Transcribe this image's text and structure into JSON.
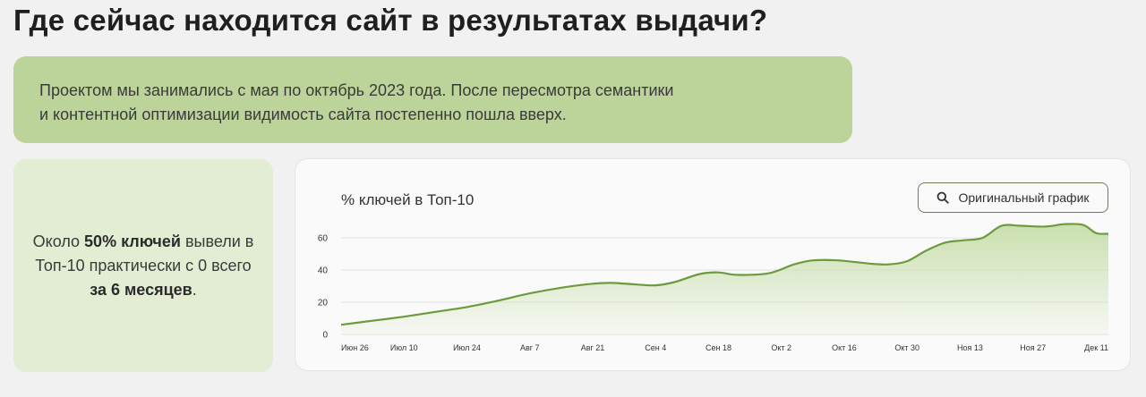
{
  "page": {
    "title": "Где сейчас находится сайт в результатах выдачи?"
  },
  "intro": {
    "line1": "Проектом мы занимались с мая по октябрь 2023 года. После пересмотра семантики",
    "line2": "и контентной оптимизации видимость сайта постепенно пошла вверх."
  },
  "stat": {
    "part1": "Около ",
    "bold1": "50% ключей",
    "part2": " вывели в Топ-10 практически с 0 всего ",
    "bold2": "за 6 месяцев",
    "part3": "."
  },
  "chart_card": {
    "button_label": "Оригинальный график",
    "button_icon": "search-icon"
  },
  "colors": {
    "intro_bg": "#bcd49a",
    "stat_bg": "#e3edd3",
    "line": "#6c9a3c",
    "area": "#c7deaa"
  },
  "chart_data": {
    "type": "area",
    "title": "% ключей в Топ-10",
    "xlabel": "",
    "ylabel": "",
    "ylim": [
      0,
      70
    ],
    "yticks": [
      0,
      20,
      40,
      60
    ],
    "grid": true,
    "xticks": [
      "Июн 26",
      "Июл 10",
      "Июл 24",
      "Авг 7",
      "Авг 21",
      "Сен 4",
      "Сен 18",
      "Окт 2",
      "Окт 16",
      "Окт 30",
      "Ноя 13",
      "Ноя 27",
      "Дек 11"
    ],
    "series": [
      {
        "x": [
          0,
          0.5,
          1,
          1.5,
          2,
          2.5,
          3,
          3.5,
          4,
          4.3,
          4.7,
          5,
          5.3,
          5.7,
          6,
          6.3,
          6.8,
          7.2,
          7.5,
          7.9,
          8.4,
          8.7,
          9,
          9.3,
          9.6,
          9.9,
          10.2,
          10.5,
          10.8,
          11.2,
          11.5,
          11.8,
          12,
          12.2
        ],
        "y": [
          6,
          8.5,
          11,
          14,
          17,
          21,
          25.5,
          29,
          31.5,
          32,
          31,
          30.5,
          32.5,
          37.5,
          38.5,
          37,
          38,
          43.5,
          46,
          46,
          44,
          43.5,
          45.5,
          52,
          57,
          58.5,
          60,
          67.5,
          67.5,
          67,
          68.5,
          68,
          63,
          62.5
        ]
      }
    ]
  }
}
